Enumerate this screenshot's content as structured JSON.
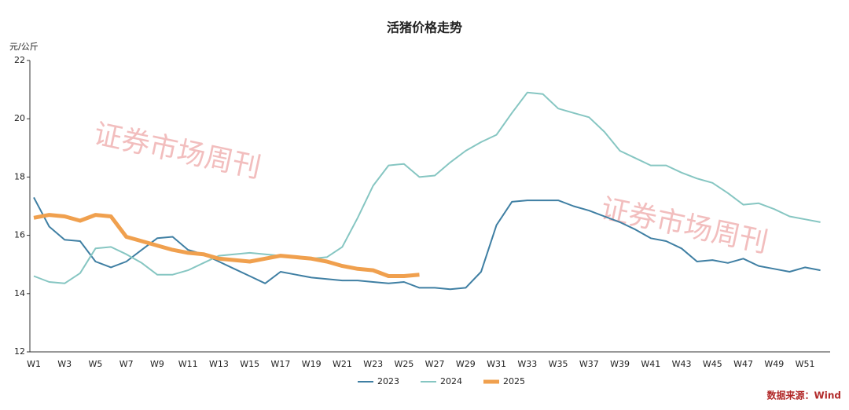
{
  "chart_data": {
    "type": "line",
    "title": "活猪价格走势",
    "y_label": "元/公斤",
    "source": "数据来源：Wind",
    "watermark": "证券市场周刊",
    "categories": [
      "W1",
      null,
      "W3",
      null,
      "W5",
      null,
      "W7",
      null,
      "W9",
      null,
      "W11",
      null,
      "W13",
      null,
      "W15",
      null,
      "W17",
      null,
      "W19",
      null,
      "W21",
      null,
      "W23",
      null,
      "W25",
      null,
      "W27",
      null,
      "W29",
      null,
      "W31",
      null,
      "W33",
      null,
      "W35",
      null,
      "W37",
      null,
      "W39",
      null,
      "W41",
      null,
      "W43",
      null,
      "W45",
      null,
      "W47",
      null,
      "W49",
      null,
      "W51",
      null
    ],
    "series": [
      {
        "name": "2023",
        "color": "#3f7fa3",
        "width": 2,
        "values": [
          17.3,
          16.3,
          15.85,
          15.8,
          15.1,
          14.9,
          15.1,
          15.5,
          15.9,
          15.95,
          15.5,
          15.35,
          15.1,
          14.85,
          14.6,
          14.35,
          14.75,
          14.65,
          14.55,
          14.5,
          14.45,
          14.45,
          14.4,
          14.35,
          14.4,
          14.2,
          14.2,
          14.15,
          14.2,
          14.75,
          16.35,
          17.15,
          17.2,
          17.2,
          17.2,
          17.0,
          16.85,
          16.65,
          16.45,
          16.2,
          15.9,
          15.8,
          15.55,
          15.1,
          15.15,
          15.05,
          15.2,
          14.95,
          14.85,
          14.75,
          14.9,
          14.8
        ]
      },
      {
        "name": "2024",
        "color": "#86c6c2",
        "width": 2,
        "values": [
          14.6,
          14.4,
          14.35,
          14.7,
          15.55,
          15.6,
          15.35,
          15.05,
          14.65,
          14.65,
          14.8,
          15.05,
          15.3,
          15.35,
          15.4,
          15.35,
          15.3,
          15.25,
          15.2,
          15.25,
          15.6,
          16.6,
          17.7,
          18.4,
          18.45,
          18.0,
          18.05,
          18.5,
          18.9,
          19.2,
          19.45,
          20.2,
          20.9,
          20.85,
          20.35,
          20.2,
          20.05,
          19.55,
          18.9,
          18.65,
          18.4,
          18.4,
          18.15,
          17.95,
          17.8,
          17.45,
          17.05,
          17.1,
          16.9,
          16.65,
          16.55,
          16.45
        ]
      },
      {
        "name": "2025",
        "color": "#f0a04e",
        "width": 5,
        "values": [
          16.6,
          16.7,
          16.65,
          16.5,
          16.7,
          16.65,
          15.95,
          15.8,
          15.65,
          15.5,
          15.4,
          15.35,
          15.2,
          15.15,
          15.1,
          15.2,
          15.3,
          15.25,
          15.2,
          15.1,
          14.95,
          14.85,
          14.8,
          14.6,
          14.6,
          14.65,
          null,
          null,
          null,
          null,
          null,
          null,
          null,
          null,
          null,
          null,
          null,
          null,
          null,
          null,
          null,
          null,
          null,
          null,
          null,
          null,
          null,
          null,
          null,
          null,
          null,
          null
        ]
      }
    ],
    "ylim": [
      12,
      22
    ],
    "yticks": [
      12,
      14,
      16,
      18,
      20,
      22
    ],
    "grid": false
  }
}
